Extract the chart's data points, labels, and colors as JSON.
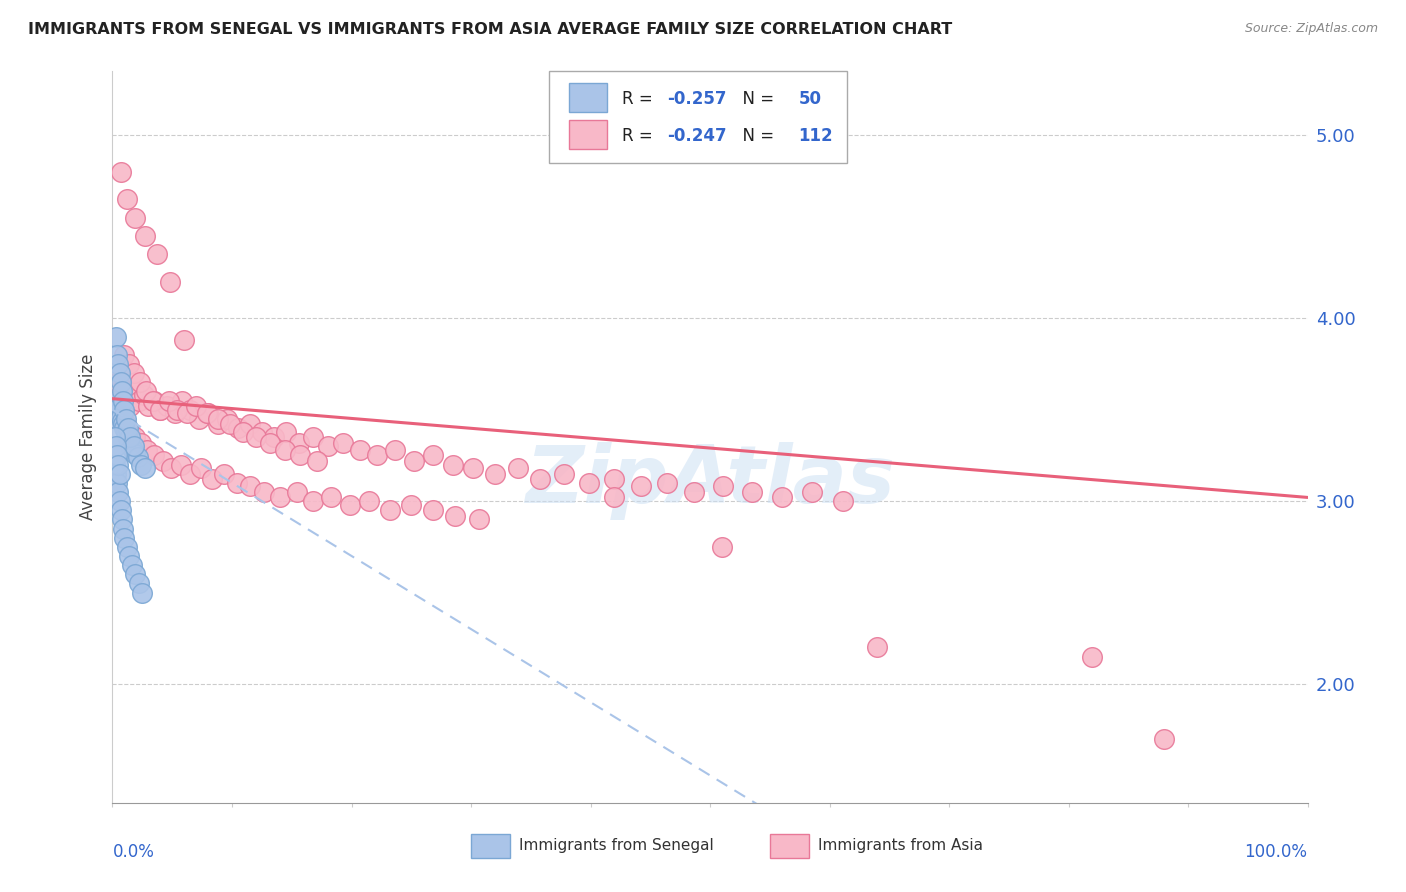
{
  "title": "IMMIGRANTS FROM SENEGAL VS IMMIGRANTS FROM ASIA AVERAGE FAMILY SIZE CORRELATION CHART",
  "source": "Source: ZipAtlas.com",
  "ylabel": "Average Family Size",
  "yticks": [
    2.0,
    3.0,
    4.0,
    5.0
  ],
  "xlim": [
    0.0,
    1.0
  ],
  "ylim": [
    1.35,
    5.35
  ],
  "legend_R_blue": "-0.257",
  "legend_N_blue": "50",
  "legend_R_pink": "-0.247",
  "legend_N_pink": "112",
  "blue_face": "#aac4e8",
  "blue_edge": "#7ba7d4",
  "pink_face": "#f8b8c8",
  "pink_edge": "#e87898",
  "trend_pink_color": "#e8607a",
  "trend_blue_color": "#aac4e8",
  "watermark": "ZipAtlas",
  "senegal_x": [
    0.002,
    0.003,
    0.004,
    0.005,
    0.006,
    0.007,
    0.008,
    0.009,
    0.01,
    0.011,
    0.012,
    0.013,
    0.015,
    0.017,
    0.019,
    0.021,
    0.024,
    0.027,
    0.003,
    0.004,
    0.005,
    0.006,
    0.007,
    0.008,
    0.009,
    0.01,
    0.011,
    0.013,
    0.015,
    0.018,
    0.002,
    0.003,
    0.004,
    0.005,
    0.006,
    0.007,
    0.008,
    0.009,
    0.01,
    0.012,
    0.014,
    0.016,
    0.019,
    0.022,
    0.025,
    0.002,
    0.003,
    0.004,
    0.005,
    0.006
  ],
  "senegal_y": [
    3.55,
    3.5,
    3.45,
    3.48,
    3.52,
    3.46,
    3.44,
    3.42,
    3.4,
    3.38,
    3.36,
    3.34,
    3.3,
    3.28,
    3.26,
    3.24,
    3.2,
    3.18,
    3.9,
    3.8,
    3.75,
    3.7,
    3.65,
    3.6,
    3.55,
    3.5,
    3.45,
    3.4,
    3.35,
    3.3,
    3.2,
    3.15,
    3.1,
    3.05,
    3.0,
    2.95,
    2.9,
    2.85,
    2.8,
    2.75,
    2.7,
    2.65,
    2.6,
    2.55,
    2.5,
    3.35,
    3.3,
    3.25,
    3.2,
    3.15
  ],
  "asia_x": [
    0.003,
    0.005,
    0.007,
    0.009,
    0.012,
    0.015,
    0.018,
    0.022,
    0.026,
    0.03,
    0.035,
    0.04,
    0.046,
    0.052,
    0.058,
    0.065,
    0.072,
    0.08,
    0.088,
    0.096,
    0.105,
    0.115,
    0.125,
    0.135,
    0.145,
    0.156,
    0.168,
    0.18,
    0.193,
    0.207,
    0.221,
    0.236,
    0.252,
    0.268,
    0.285,
    0.302,
    0.32,
    0.339,
    0.358,
    0.378,
    0.399,
    0.42,
    0.442,
    0.464,
    0.487,
    0.511,
    0.535,
    0.56,
    0.585,
    0.611,
    0.01,
    0.014,
    0.018,
    0.023,
    0.028,
    0.034,
    0.04,
    0.047,
    0.054,
    0.062,
    0.07,
    0.079,
    0.088,
    0.098,
    0.109,
    0.12,
    0.132,
    0.144,
    0.157,
    0.171,
    0.003,
    0.005,
    0.008,
    0.011,
    0.015,
    0.019,
    0.024,
    0.029,
    0.035,
    0.042,
    0.049,
    0.057,
    0.065,
    0.074,
    0.083,
    0.093,
    0.104,
    0.115,
    0.127,
    0.14,
    0.154,
    0.168,
    0.183,
    0.199,
    0.215,
    0.232,
    0.25,
    0.268,
    0.287,
    0.307,
    0.007,
    0.012,
    0.019,
    0.027,
    0.037,
    0.048,
    0.06,
    0.42,
    0.64,
    0.82,
    0.88,
    0.51
  ],
  "asia_y": [
    3.6,
    3.65,
    3.58,
    3.62,
    3.55,
    3.52,
    3.6,
    3.55,
    3.58,
    3.52,
    3.55,
    3.5,
    3.52,
    3.48,
    3.55,
    3.5,
    3.45,
    3.48,
    3.42,
    3.45,
    3.4,
    3.42,
    3.38,
    3.35,
    3.38,
    3.32,
    3.35,
    3.3,
    3.32,
    3.28,
    3.25,
    3.28,
    3.22,
    3.25,
    3.2,
    3.18,
    3.15,
    3.18,
    3.12,
    3.15,
    3.1,
    3.12,
    3.08,
    3.1,
    3.05,
    3.08,
    3.05,
    3.02,
    3.05,
    3.0,
    3.8,
    3.75,
    3.7,
    3.65,
    3.6,
    3.55,
    3.5,
    3.55,
    3.5,
    3.48,
    3.52,
    3.48,
    3.45,
    3.42,
    3.38,
    3.35,
    3.32,
    3.28,
    3.25,
    3.22,
    3.5,
    3.48,
    3.45,
    3.42,
    3.38,
    3.35,
    3.32,
    3.28,
    3.25,
    3.22,
    3.18,
    3.2,
    3.15,
    3.18,
    3.12,
    3.15,
    3.1,
    3.08,
    3.05,
    3.02,
    3.05,
    3.0,
    3.02,
    2.98,
    3.0,
    2.95,
    2.98,
    2.95,
    2.92,
    2.9,
    4.8,
    4.65,
    4.55,
    4.45,
    4.35,
    4.2,
    3.88,
    3.02,
    2.2,
    2.15,
    1.7,
    2.75
  ]
}
